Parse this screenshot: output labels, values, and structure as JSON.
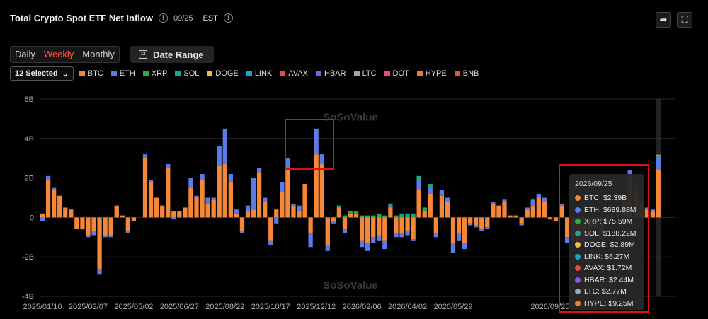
{
  "header": {
    "title": "Total Crypto Spot ETF Net Inflow",
    "date": "09/25",
    "timezone": "EST",
    "info_glyph": "i",
    "share_glyph": "➦",
    "fullscreen_glyph": "⛶"
  },
  "tabs": [
    {
      "label": "Daily",
      "active": false
    },
    {
      "label": "Weekly",
      "active": true
    },
    {
      "label": "Monthly",
      "active": false
    }
  ],
  "date_range": {
    "label": "Date Range",
    "icon_text": "12"
  },
  "asset_select": {
    "label": "12 Selected",
    "chevron": "⌄"
  },
  "colors": {
    "BTC": "#f5873a",
    "ETH": "#5b7be8",
    "XRP": "#27b04a",
    "SOL": "#17a89a",
    "DOGE": "#f3b843",
    "LINK": "#12a8d0",
    "AVAX": "#e74a4a",
    "HBAR": "#8b58e6",
    "LTC": "#9aa4b8",
    "DOT": "#e64a8a",
    "HYPE": "#f07d28",
    "BNB": "#e8572b",
    "background": "#000000",
    "grid": "#2a2a2a",
    "highlight": "#e01010"
  },
  "legend": [
    "BTC",
    "ETH",
    "XRP",
    "SOL",
    "DOGE",
    "LINK",
    "AVAX",
    "HBAR",
    "LTC",
    "DOT",
    "HYPE",
    "BNB"
  ],
  "chart_data": {
    "type": "bar",
    "stacked": true,
    "title": "Total Crypto Spot ETF Net Inflow",
    "yunit": "B",
    "ylim": [
      -4,
      6
    ],
    "yticks": [
      -4,
      -2,
      0,
      2,
      4,
      6
    ],
    "ytick_labels": [
      "-4B",
      "-2B",
      "0",
      "2B",
      "4B",
      "6B"
    ],
    "xtick_labels": [
      "2025/01/10",
      "2025/03/07",
      "2025/05/02",
      "2025/06/27",
      "2025/08/22",
      "2025/10/17",
      "2025/12/12",
      "2026/02/06",
      "2026/04/02",
      "2026/05/29",
      "2026/09/25"
    ],
    "xtick_positions": [
      0,
      8,
      16,
      24,
      32,
      40,
      48,
      56,
      64,
      72,
      89
    ],
    "watermark": "SoSoValue",
    "series": [
      {
        "name": "BTC",
        "values": [
          0.2,
          1.9,
          1.4,
          1.1,
          0.5,
          0.4,
          -0.6,
          -0.6,
          -0.9,
          -0.7,
          -2.6,
          -0.9,
          -0.9,
          0.6,
          0.1,
          -0.7,
          -0.2,
          0.0,
          3.0,
          1.8,
          1.0,
          0.6,
          2.5,
          0.3,
          0.3,
          0.5,
          1.5,
          1.0,
          1.9,
          0.7,
          0.9,
          2.6,
          2.7,
          1.8,
          0.2,
          -0.7,
          0.3,
          0.4,
          2.3,
          0.8,
          -1.2,
          0.4,
          1.3,
          2.4,
          0.6,
          0.3,
          1.7,
          -0.8,
          3.2,
          2.7,
          -1.4,
          -0.2,
          0.5,
          -0.6,
          0.2,
          0.2,
          -1.2,
          -1.3,
          -1.0,
          -0.9,
          -1.2,
          0.5,
          -0.8,
          -0.8,
          -0.7,
          -1.1,
          1.4,
          0.3,
          1.2,
          -0.8,
          1.1,
          0.8,
          -1.3,
          -0.8,
          -1.3,
          -0.3,
          -0.4,
          -0.6,
          -0.5,
          0.7,
          0.6,
          0.8,
          0.1,
          0.1,
          -0.3,
          0.4,
          0.6,
          1.0,
          0.8,
          -0.1,
          -0.2,
          0.6,
          -1.0,
          -1.0,
          -1.2,
          -1.0,
          -0.8,
          -0.5,
          -0.8,
          -0.2,
          0.1,
          0.3,
          0.8,
          2.0,
          1.2,
          0.6,
          0.4,
          0.3,
          2.39
        ]
      },
      {
        "name": "ETH",
        "values": [
          -0.2,
          0.2,
          0.1,
          0.0,
          0.0,
          0.0,
          0.0,
          0.0,
          -0.1,
          -0.2,
          -0.3,
          -0.1,
          -0.1,
          0.0,
          0.0,
          -0.1,
          0.0,
          0.0,
          0.2,
          0.1,
          0.0,
          0.0,
          0.2,
          -0.1,
          0.0,
          0.0,
          0.5,
          0.1,
          0.3,
          0.3,
          0.1,
          1.0,
          1.8,
          0.4,
          0.2,
          -0.1,
          0.3,
          1.6,
          0.2,
          0.2,
          -0.2,
          -0.3,
          0.5,
          0.6,
          0.1,
          0.3,
          0.0,
          -0.7,
          1.3,
          0.5,
          -0.3,
          -0.1,
          0.0,
          -0.2,
          0.0,
          0.0,
          -0.3,
          -0.4,
          -0.3,
          -0.3,
          -0.4,
          0.1,
          -0.2,
          -0.2,
          -0.2,
          -0.1,
          0.5,
          0.0,
          0.3,
          -0.2,
          0.3,
          0.2,
          -0.5,
          -0.4,
          -0.3,
          -0.1,
          -0.1,
          -0.1,
          -0.1,
          0.1,
          0.0,
          0.1,
          0.0,
          0.0,
          -0.1,
          0.1,
          0.3,
          0.2,
          0.2,
          0.0,
          0.0,
          0.1,
          -0.3,
          -0.3,
          -0.3,
          -0.3,
          -0.3,
          -0.1,
          -0.3,
          -0.1,
          0.1,
          0.2,
          0.3,
          0.4,
          0.4,
          0.2,
          0.1,
          0.1,
          0.69
        ]
      },
      {
        "name": "XRP",
        "values": [
          0,
          0,
          0,
          0,
          0,
          0,
          0,
          0,
          0,
          0,
          0,
          0,
          0,
          0,
          0,
          0,
          0,
          0,
          0,
          0,
          0,
          0,
          0,
          0,
          0,
          0,
          0,
          0,
          0,
          0,
          0,
          0,
          0,
          0,
          0,
          0,
          0,
          0,
          0,
          0,
          0,
          0,
          0,
          0,
          0,
          0,
          0,
          0,
          0,
          0,
          0,
          0,
          0.1,
          0.1,
          0.1,
          0.1,
          0.1,
          0.1,
          0.1,
          0.2,
          0.1,
          0.1,
          0.1,
          0.1,
          0.1,
          0.1,
          0.1,
          0.1,
          0.1,
          0,
          0,
          0,
          0,
          0,
          0,
          0,
          0,
          0,
          0,
          0,
          0,
          0,
          0,
          0,
          0,
          0,
          0,
          0,
          0,
          0,
          0,
          0,
          0,
          0,
          0,
          0,
          0,
          0,
          0,
          0,
          0,
          0,
          0,
          0,
          0,
          0,
          0,
          0,
          0.076
        ]
      },
      {
        "name": "SOL",
        "values": [
          0,
          0,
          0,
          0,
          0,
          0,
          0,
          0,
          0,
          0,
          0,
          0,
          0,
          0,
          0,
          0,
          0,
          0,
          0,
          0,
          0,
          0,
          0,
          0,
          0,
          0,
          0,
          0,
          0,
          0,
          0,
          0,
          0,
          0,
          0,
          0,
          0,
          0,
          0,
          0,
          0,
          0,
          0,
          0,
          0,
          0,
          0,
          0,
          0,
          0,
          0,
          0,
          0,
          0,
          0,
          0,
          0,
          0,
          0,
          0,
          0,
          0,
          0,
          0.1,
          0.1,
          0.1,
          0.1,
          0.1,
          0.1,
          0,
          0,
          0,
          0,
          0,
          0,
          0,
          0,
          0,
          0,
          0,
          0,
          0,
          0,
          0,
          0,
          0,
          0,
          0,
          0,
          0,
          0,
          0,
          0,
          0,
          0,
          0,
          0,
          0,
          0,
          0,
          0,
          0,
          0,
          0,
          0,
          0,
          0,
          0,
          0,
          0.19
        ]
      },
      {
        "name": "DOGE",
        "values": [
          0,
          0,
          0,
          0,
          0,
          0,
          0,
          0,
          0,
          0,
          0,
          0,
          0,
          0,
          0,
          0,
          0,
          0,
          0,
          0,
          0,
          0,
          0,
          0,
          0,
          0,
          0,
          0,
          0,
          0,
          0,
          0,
          0,
          0,
          0,
          0,
          0,
          0,
          0,
          0,
          0,
          0,
          0,
          0,
          0,
          0,
          0,
          0,
          0,
          0,
          0,
          0,
          0,
          0,
          0,
          0,
          0,
          0,
          0,
          0,
          0,
          0,
          0,
          0,
          0,
          0,
          0,
          0,
          0,
          0,
          0,
          0,
          0,
          0,
          0,
          0,
          0,
          0,
          0,
          0,
          0,
          0,
          0,
          0,
          0,
          0,
          0,
          0,
          0,
          0,
          0,
          0,
          0,
          0,
          0,
          0,
          0,
          0,
          0,
          0,
          0,
          0,
          0,
          0,
          0,
          0,
          0,
          0,
          0.003
        ]
      },
      {
        "name": "LINK",
        "values": [
          0,
          0,
          0,
          0,
          0,
          0,
          0,
          0,
          0,
          0,
          0,
          0,
          0,
          0,
          0,
          0,
          0,
          0,
          0,
          0,
          0,
          0,
          0,
          0,
          0,
          0,
          0,
          0,
          0,
          0,
          0,
          0,
          0,
          0,
          0,
          0,
          0,
          0,
          0,
          0,
          0,
          0,
          0,
          0,
          0,
          0,
          0,
          0,
          0,
          0,
          0,
          0,
          0,
          0,
          0,
          0,
          0,
          0,
          0,
          0,
          0,
          0,
          0,
          0,
          0,
          0,
          0,
          0,
          0,
          0,
          0,
          0,
          0,
          0,
          0,
          0,
          0,
          0,
          0,
          0,
          0,
          0,
          0,
          0,
          0,
          0,
          0,
          0,
          0,
          0,
          0,
          0,
          0,
          0,
          0,
          0,
          0,
          0,
          0,
          0,
          0,
          0,
          0,
          0,
          0,
          0,
          0,
          0,
          0.006
        ]
      },
      {
        "name": "AVAX",
        "values": [
          0,
          0,
          0,
          0,
          0,
          0,
          0,
          0,
          0,
          0,
          0,
          0,
          0,
          0,
          0,
          0,
          0,
          0,
          0,
          0,
          0,
          0,
          0,
          0,
          0,
          0,
          0,
          0,
          0,
          0,
          0,
          0,
          0,
          0,
          0,
          0,
          0,
          0,
          0,
          0,
          0,
          0,
          0,
          0,
          0,
          0,
          0,
          0,
          0,
          0,
          0,
          0,
          0,
          0,
          0,
          0,
          0,
          0,
          0,
          0,
          0,
          0,
          0,
          0,
          0,
          0,
          0,
          0,
          0,
          0,
          0,
          0,
          0,
          0,
          0,
          0,
          0,
          0,
          0,
          0,
          0,
          0,
          0,
          0,
          0,
          0,
          0,
          0,
          0,
          0,
          0,
          0,
          0,
          0,
          0,
          0,
          0,
          0,
          0,
          0,
          0,
          0,
          0,
          0,
          0,
          0,
          0,
          0,
          0.002
        ]
      },
      {
        "name": "HBAR",
        "values": [
          0,
          0,
          0,
          0,
          0,
          0,
          0,
          0,
          0,
          0,
          0,
          0,
          0,
          0,
          0,
          0,
          0,
          0,
          0,
          0,
          0,
          0,
          0,
          0,
          0,
          0,
          0,
          0,
          0,
          0,
          0,
          0,
          0,
          0,
          0,
          0,
          0,
          0,
          0,
          0,
          0,
          0,
          0,
          0,
          0,
          0,
          0,
          0,
          0,
          0,
          0,
          0,
          0,
          0,
          0,
          0,
          0,
          0,
          0,
          0,
          0,
          0,
          0,
          0,
          0,
          0,
          0,
          0,
          0,
          0,
          0,
          0,
          0,
          0,
          0,
          0,
          0,
          0,
          0,
          0,
          0,
          0,
          0,
          0,
          0,
          0,
          0,
          0,
          0,
          0,
          0,
          0,
          0,
          0,
          0,
          0,
          0,
          0,
          0,
          0,
          0,
          0,
          0,
          0,
          0,
          0,
          0,
          0,
          0.002
        ]
      },
      {
        "name": "LTC",
        "values": [
          0,
          0,
          0,
          0,
          0,
          0,
          0,
          0,
          0,
          0,
          0,
          0,
          0,
          0,
          0,
          0,
          0,
          0,
          0,
          0,
          0,
          0,
          0,
          0,
          0,
          0,
          0,
          0,
          0,
          0,
          0,
          0,
          0,
          0,
          0,
          0,
          0,
          0,
          0,
          0,
          0,
          0,
          0,
          0,
          0,
          0,
          0,
          0,
          0,
          0,
          0,
          0,
          0,
          0,
          0,
          0,
          0,
          0,
          0,
          0,
          0,
          0,
          0,
          0,
          0,
          0,
          0,
          0,
          0,
          0,
          0,
          0,
          0,
          0,
          0,
          0,
          0,
          0,
          0,
          0,
          0,
          0,
          0,
          0,
          0,
          0,
          0,
          0,
          0,
          0,
          0,
          0,
          0,
          0,
          0,
          0,
          0,
          0,
          0,
          0,
          0,
          0,
          0,
          0,
          0,
          0,
          0,
          0,
          0.003
        ]
      },
      {
        "name": "HYPE",
        "values": [
          0,
          0,
          0,
          0,
          0,
          0,
          0,
          0,
          0,
          0,
          0,
          0,
          0,
          0,
          0,
          0,
          0,
          0,
          0,
          0,
          0,
          0,
          0,
          0,
          0,
          0,
          0,
          0,
          0,
          0,
          0,
          0,
          0,
          0,
          0,
          0,
          0,
          0,
          0,
          0,
          0,
          0,
          0,
          0,
          0,
          0,
          0,
          0,
          0,
          0,
          0,
          0,
          0,
          0,
          0,
          0,
          0,
          0,
          0,
          0,
          0,
          0,
          0,
          0,
          0,
          0,
          0,
          0,
          0,
          0,
          0,
          0,
          0,
          0,
          0,
          0,
          0,
          0,
          0,
          0,
          0,
          0,
          0,
          0,
          0,
          0,
          0,
          0,
          0,
          0,
          0,
          0,
          0,
          0,
          0,
          0,
          0,
          0,
          0,
          0,
          0,
          0,
          0,
          0,
          0,
          0,
          0,
          0,
          0.009
        ]
      }
    ]
  },
  "tooltip": {
    "date": "2026/09/25",
    "rows": [
      {
        "asset": "BTC",
        "text": "BTC: $2.39B"
      },
      {
        "asset": "ETH",
        "text": "ETH: $689.88M"
      },
      {
        "asset": "XRP",
        "text": "XRP: $75.59M"
      },
      {
        "asset": "SOL",
        "text": "SOL: $188.22M"
      },
      {
        "asset": "DOGE",
        "text": "DOGE: $2.89M"
      },
      {
        "asset": "LINK",
        "text": "LINK: $6.27M"
      },
      {
        "asset": "AVAX",
        "text": "AVAX: $1.72M"
      },
      {
        "asset": "HBAR",
        "text": "HBAR: $2.44M"
      },
      {
        "asset": "LTC",
        "text": "LTC: $2.77M"
      },
      {
        "asset": "HYPE",
        "text": "HYPE: $9.25M"
      }
    ]
  }
}
